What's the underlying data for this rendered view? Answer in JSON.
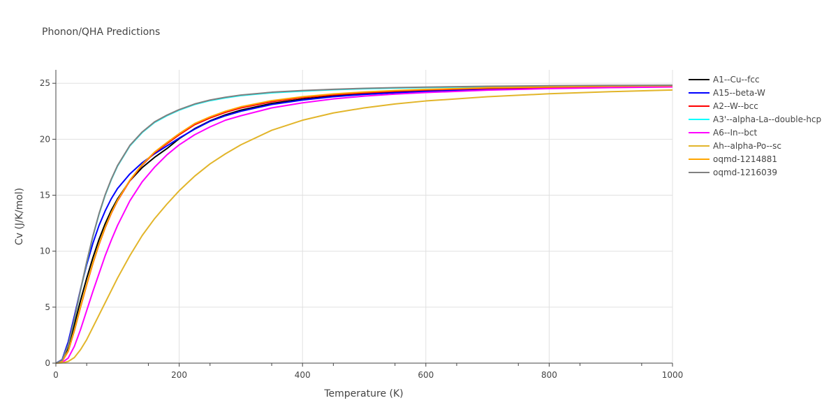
{
  "chart_data": {
    "type": "line",
    "title": "Phonon/QHA Predictions",
    "xlabel": "Temperature (K)",
    "ylabel": "Cv (J/K/mol)",
    "xlim": [
      0,
      1000
    ],
    "ylim": [
      0,
      26.2
    ],
    "xticks": [
      0,
      200,
      400,
      600,
      800,
      1000
    ],
    "yticks": [
      0,
      5,
      10,
      15,
      20,
      25
    ],
    "grid": true,
    "legend_position": "right",
    "x": [
      0,
      10,
      20,
      30,
      40,
      50,
      60,
      70,
      80,
      90,
      100,
      120,
      140,
      160,
      180,
      200,
      225,
      250,
      275,
      300,
      350,
      400,
      450,
      500,
      550,
      600,
      700,
      800,
      900,
      1000
    ],
    "series": [
      {
        "name": "A1--Cu--fcc",
        "color": "#000000",
        "values": [
          0,
          0.17,
          1.35,
          3.43,
          5.6,
          7.58,
          9.41,
          11.05,
          12.46,
          13.66,
          14.67,
          16.29,
          17.47,
          18.38,
          19.16,
          20.05,
          20.94,
          21.64,
          22.18,
          22.6,
          23.2,
          23.59,
          23.86,
          24.06,
          24.2,
          24.32,
          24.48,
          24.58,
          24.65,
          24.7
        ]
      },
      {
        "name": "A15--beta-W",
        "color": "#0000ff",
        "values": [
          0,
          0.3,
          1.9,
          4.2,
          6.6,
          8.8,
          10.7,
          12.3,
          13.6,
          14.7,
          15.6,
          16.9,
          17.9,
          18.7,
          19.4,
          20.1,
          20.9,
          21.6,
          22.1,
          22.5,
          23.1,
          23.5,
          23.8,
          24.0,
          24.15,
          24.28,
          24.46,
          24.57,
          24.64,
          24.69
        ]
      },
      {
        "name": "A2--W--bcc",
        "color": "#ff0000",
        "values": [
          0,
          0.14,
          1.06,
          2.9,
          5.0,
          7.0,
          8.9,
          10.6,
          12.1,
          13.4,
          14.5,
          16.3,
          17.7,
          18.8,
          19.6,
          20.4,
          21.3,
          21.9,
          22.4,
          22.8,
          23.35,
          23.72,
          23.97,
          24.15,
          24.29,
          24.4,
          24.55,
          24.64,
          24.71,
          24.75
        ]
      },
      {
        "name": "A3'--alpha-La--double-hcp",
        "color": "#00ffff",
        "values": [
          0,
          0.25,
          1.6,
          3.9,
          6.5,
          9.0,
          11.3,
          13.3,
          15.0,
          16.4,
          17.6,
          19.4,
          20.6,
          21.5,
          22.1,
          22.6,
          23.1,
          23.45,
          23.7,
          23.9,
          24.15,
          24.3,
          24.42,
          24.51,
          24.57,
          24.62,
          24.69,
          24.74,
          24.77,
          24.8
        ]
      },
      {
        "name": "A6--In--bct",
        "color": "#ff00ff",
        "values": [
          0,
          0.05,
          0.45,
          1.5,
          3.0,
          4.7,
          6.4,
          8.0,
          9.6,
          11.0,
          12.3,
          14.5,
          16.2,
          17.5,
          18.6,
          19.5,
          20.4,
          21.1,
          21.7,
          22.1,
          22.8,
          23.25,
          23.6,
          23.85,
          24.03,
          24.17,
          24.38,
          24.52,
          24.61,
          24.67
        ]
      },
      {
        "name": "Ah--alpha-Po--sc",
        "color": "#e2b52a",
        "values": [
          0,
          0.02,
          0.15,
          0.5,
          1.2,
          2.1,
          3.2,
          4.3,
          5.4,
          6.5,
          7.6,
          9.6,
          11.4,
          12.9,
          14.2,
          15.4,
          16.7,
          17.8,
          18.7,
          19.5,
          20.8,
          21.7,
          22.35,
          22.8,
          23.15,
          23.42,
          23.8,
          24.06,
          24.25,
          24.4
        ]
      },
      {
        "name": "oqmd-1214881",
        "color": "#ffa500",
        "values": [
          0,
          0.14,
          1.1,
          2.95,
          5.05,
          7.05,
          8.95,
          10.65,
          12.15,
          13.45,
          14.55,
          16.35,
          17.75,
          18.85,
          19.7,
          20.5,
          21.4,
          22.0,
          22.5,
          22.9,
          23.45,
          23.8,
          24.05,
          24.22,
          24.35,
          24.45,
          24.6,
          24.68,
          24.74,
          24.78
        ]
      },
      {
        "name": "oqmd-1216039",
        "color": "#808080",
        "values": [
          0,
          0.26,
          1.62,
          3.95,
          6.55,
          9.05,
          11.35,
          13.35,
          15.05,
          16.45,
          17.65,
          19.45,
          20.65,
          21.55,
          22.15,
          22.65,
          23.15,
          23.5,
          23.75,
          23.95,
          24.2,
          24.35,
          24.46,
          24.55,
          24.61,
          24.66,
          24.73,
          24.78,
          24.81,
          24.83
        ]
      }
    ]
  }
}
